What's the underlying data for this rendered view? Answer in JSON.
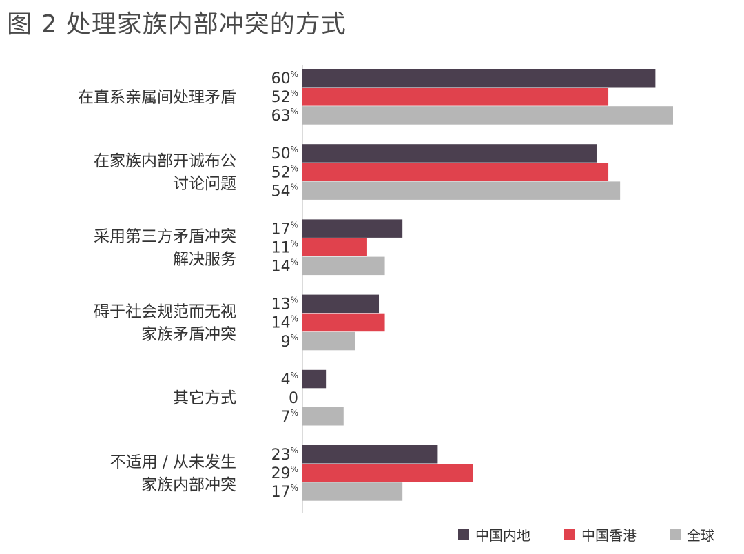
{
  "title": "图 2 处理家族内部冲突的方式",
  "colors": {
    "mainland": "#4b3f4f",
    "hongkong": "#e0424d",
    "global": "#b6b6b6",
    "axis": "#cfcfcf"
  },
  "chart_data": {
    "type": "bar",
    "orientation": "horizontal",
    "title": "图 2 处理家族内部冲突的方式",
    "categories": [
      [
        "在直系亲属间处理矛盾"
      ],
      [
        "在家族内部开诚布公",
        "讨论问题"
      ],
      [
        "采用第三方矛盾冲突",
        "解决服务"
      ],
      [
        "碍于社会规范而无视",
        "家族矛盾冲突"
      ],
      [
        "其它方式"
      ],
      [
        "不适用 / 从未发生",
        "家族内部冲突"
      ]
    ],
    "series": [
      {
        "name": "中国内地",
        "color": "#4b3f4f",
        "values": [
          60,
          50,
          17,
          13,
          4,
          23
        ]
      },
      {
        "name": "中国香港",
        "color": "#e0424d",
        "values": [
          52,
          52,
          11,
          14,
          0,
          29
        ]
      },
      {
        "name": "全球",
        "color": "#b6b6b6",
        "values": [
          63,
          54,
          14,
          9,
          7,
          17
        ]
      }
    ],
    "unit": "%",
    "xlim": [
      0,
      70
    ],
    "grid": false,
    "legend_position": "bottom-right"
  }
}
